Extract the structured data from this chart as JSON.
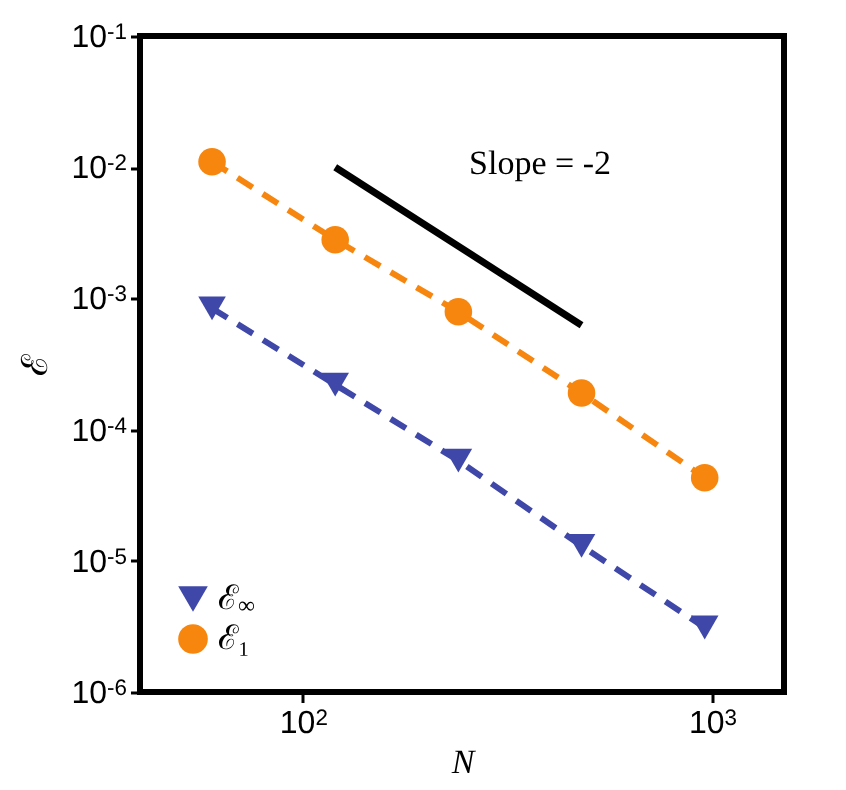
{
  "chart_data": {
    "type": "line",
    "xlabel": "N",
    "ylabel": "ℰ",
    "log": "xy",
    "grid": false,
    "legend": "bottom left",
    "line_style": "dashed",
    "xlim": [
      40,
      1500
    ],
    "ylim": [
      1e-06,
      0.1
    ],
    "xticks": [
      {
        "value": 100,
        "label": "10$^{2}$"
      },
      {
        "value": 1000,
        "label": "10$^{3}$"
      }
    ],
    "yticks": [
      {
        "value": 1e-06,
        "label": "10$^{-6}$"
      },
      {
        "value": 1e-05,
        "label": "10$^{-5}$"
      },
      {
        "value": 0.0001,
        "label": "10$^{-4}$"
      },
      {
        "value": 0.001,
        "label": "10$^{-3}$"
      },
      {
        "value": 0.01,
        "label": "10$^{-2}$"
      },
      {
        "value": 0.1,
        "label": "10$^{-1}$"
      }
    ],
    "x": [
      60,
      120,
      240,
      480,
      960
    ],
    "series": [
      {
        "name": "ℰ$_{∞}$",
        "color": "#3f48a8",
        "marker": "triangle-down",
        "values": [
          0.00084,
          0.00022,
          5.8e-05,
          1.3e-05,
          3.1e-06
        ]
      },
      {
        "name": "ℰ₁",
        "color": "#f7860f",
        "marker": "circle",
        "values": [
          0.011,
          0.0028,
          0.00079,
          0.00019,
          4.3e-05
        ]
      },
      {
        "color": "#000000",
        "marker": "none",
        "line_style": "solid",
        "x": [
          120,
          480
        ],
        "values": [
          0.01,
          0.000625
        ]
      }
    ],
    "annotations": [
      "Slope = -2"
    ]
  }
}
